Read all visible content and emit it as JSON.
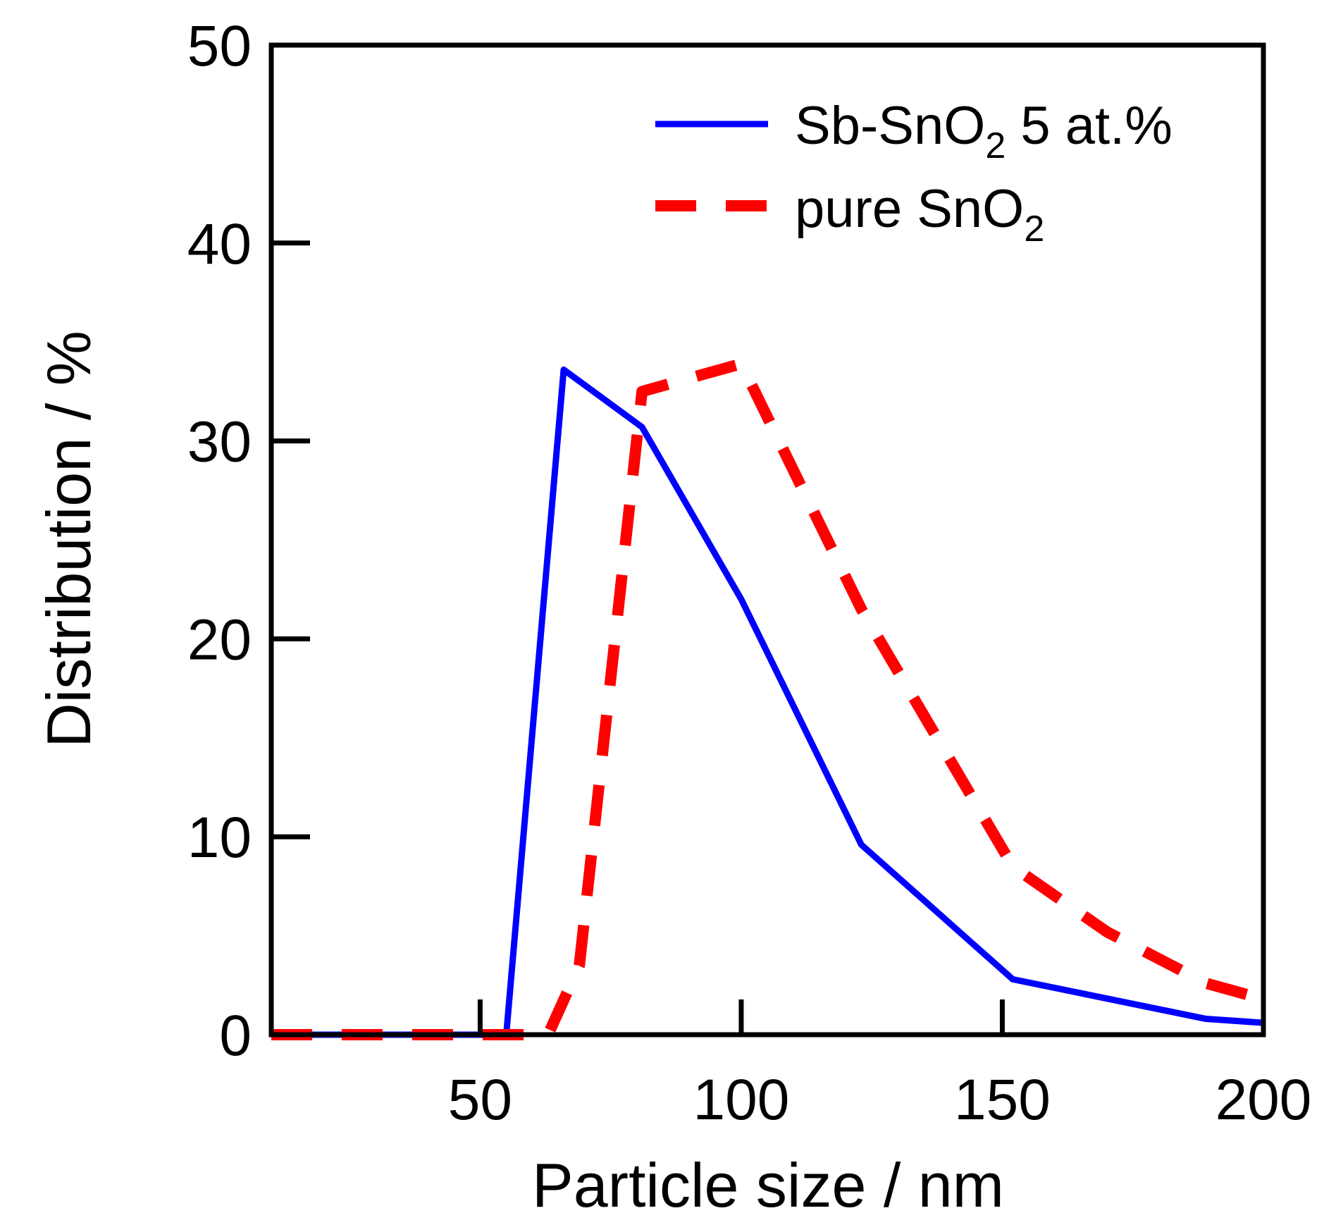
{
  "chart_data": {
    "type": "line",
    "title": "",
    "xlabel": "Particle size / nm",
    "ylabel": "Distribution / %",
    "xlim": [
      10,
      200
    ],
    "ylim": [
      0,
      50
    ],
    "xticks": [
      50,
      100,
      150,
      200
    ],
    "yticks": [
      0,
      10,
      20,
      30,
      40,
      50
    ],
    "xtick_labels": [
      "50",
      "100",
      "150",
      "200"
    ],
    "ytick_labels": [
      "0",
      "10",
      "20",
      "30",
      "40",
      "50"
    ],
    "grid": false,
    "legend_position": "top-right",
    "series": [
      {
        "name": "Sb-SnO2 5 at.%",
        "label_main": "Sb-SnO",
        "label_sub": "2",
        "label_tail": " 5 at.%",
        "color": "#0000ff",
        "style": "solid",
        "x": [
          10,
          55,
          66,
          81,
          100,
          123,
          152,
          189,
          200
        ],
        "y": [
          0,
          0,
          33.6,
          30.7,
          22,
          9.6,
          2.8,
          0.8,
          0.6
        ]
      },
      {
        "name": "pure SnO2",
        "label_main": "pure SnO",
        "label_sub": "2",
        "label_tail": "",
        "color": "#ff0000",
        "style": "dashed",
        "x": [
          10,
          63,
          69,
          81,
          100,
          123,
          152,
          170,
          189,
          200
        ],
        "y": [
          0,
          0,
          3.5,
          32.5,
          33.9,
          21.5,
          8.5,
          5.2,
          2.6,
          1.8
        ]
      }
    ]
  }
}
